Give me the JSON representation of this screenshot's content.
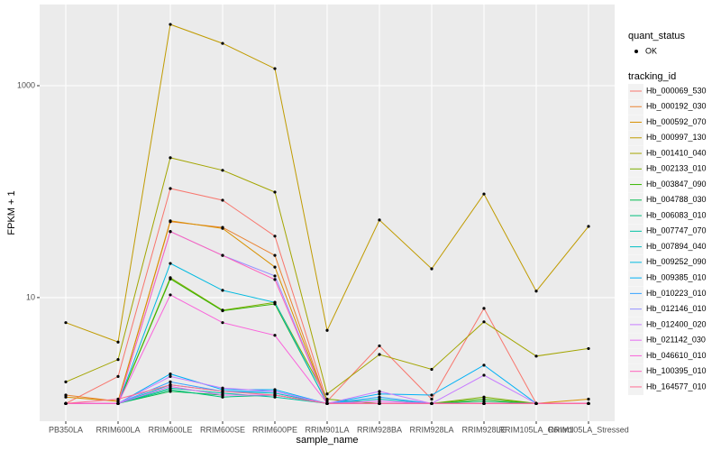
{
  "chart_data": {
    "type": "line",
    "log_y": true,
    "grid": true,
    "x_label": "sample_name",
    "y_label": "FPKM + 1",
    "legend_point_title": "quant_status",
    "legend_point_label": "OK",
    "legend_title": "tracking_id",
    "categories": [
      "PB350LA",
      "RRIM600LA",
      "RRIM600LE",
      "RRIM600SE",
      "RRIM600PE",
      "RRIM901LA",
      "RRIM928BA",
      "RRIM928LA",
      "RRIM928LE",
      "RRIM105LA_Control",
      "RRIM105LA_Stressed"
    ],
    "ylim": [
      0.68,
      5840
    ],
    "yticks": [
      10,
      1000
    ],
    "series": [
      {
        "name": "Hb_000069_530",
        "color": "#F8766D",
        "values": [
          1,
          1.8,
          107,
          83,
          38,
          1.05,
          3.5,
          1.1,
          7.9,
          1,
          1
        ]
      },
      {
        "name": "Hb_000192_030",
        "color": "#EA8331",
        "values": [
          1.2,
          1.05,
          52,
          46,
          25,
          1,
          1,
          1,
          1,
          1,
          1
        ]
      },
      {
        "name": "Hb_000592_070",
        "color": "#D89000",
        "values": [
          1.15,
          1.05,
          53,
          45,
          19.4,
          1,
          1,
          1,
          1,
          1,
          1.1
        ]
      },
      {
        "name": "Hb_000997_130",
        "color": "#C09B00",
        "values": [
          5.8,
          3.8,
          3790,
          2510,
          1450,
          4.9,
          54,
          18.7,
          95,
          11.5,
          47
        ]
      },
      {
        "name": "Hb_001410_040",
        "color": "#A3A500",
        "values": [
          1.6,
          2.6,
          209,
          159,
          99,
          1.23,
          2.9,
          2.1,
          5.9,
          2.8,
          3.3
        ]
      },
      {
        "name": "Hb_002133_010",
        "color": "#7CAE00",
        "values": [
          1,
          1,
          15.4,
          7.6,
          9,
          1.1,
          1,
          1,
          1.15,
          1,
          1
        ]
      },
      {
        "name": "Hb_003847_090",
        "color": "#39B600",
        "values": [
          1,
          1,
          15,
          7.5,
          8.7,
          1,
          1,
          1,
          1.1,
          1,
          1
        ]
      },
      {
        "name": "Hb_004788_030",
        "color": "#00BB4E",
        "values": [
          1,
          1,
          1.3,
          1.2,
          1.2,
          1,
          1,
          1,
          1.05,
          1,
          1
        ]
      },
      {
        "name": "Hb_006083_010",
        "color": "#00BF7D",
        "values": [
          1,
          1,
          1.35,
          1.15,
          1.2,
          1,
          1,
          1,
          1,
          1,
          1
        ]
      },
      {
        "name": "Hb_007747_070",
        "color": "#00C1A3",
        "values": [
          1,
          1,
          1.4,
          1.25,
          1.15,
          1,
          1,
          1,
          1,
          1,
          1
        ]
      },
      {
        "name": "Hb_007894_040",
        "color": "#00BFC4",
        "values": [
          1,
          1,
          1.5,
          1.3,
          1.25,
          1,
          1.1,
          1,
          1,
          1,
          1
        ]
      },
      {
        "name": "Hb_009252_090",
        "color": "#00BAE0",
        "values": [
          1,
          1,
          21,
          11.7,
          9,
          1,
          1,
          1,
          1,
          1,
          1
        ]
      },
      {
        "name": "Hb_009385_010",
        "color": "#00B0F6",
        "values": [
          1,
          1,
          1.9,
          1.35,
          1.35,
          1,
          1.23,
          1.2,
          2.3,
          1,
          1
        ]
      },
      {
        "name": "Hb_010223_010",
        "color": "#35A2FF",
        "values": [
          1,
          1,
          1.6,
          1.3,
          1.3,
          1,
          1.15,
          1,
          1,
          1,
          1
        ]
      },
      {
        "name": "Hb_012146_010",
        "color": "#9590FF",
        "values": [
          1,
          1,
          42,
          25,
          16,
          1,
          1,
          1,
          1,
          1,
          1
        ]
      },
      {
        "name": "Hb_012400_020",
        "color": "#C77CFF",
        "values": [
          1,
          1,
          1.8,
          1.4,
          1.3,
          1,
          1.3,
          1,
          1.85,
          1,
          1
        ]
      },
      {
        "name": "Hb_021142_030",
        "color": "#E76BF3",
        "values": [
          1,
          1,
          1.45,
          1.2,
          1.2,
          1,
          1.05,
          1,
          1,
          1,
          1
        ]
      },
      {
        "name": "Hb_046610_010",
        "color": "#FA62DB",
        "values": [
          1,
          1,
          10.6,
          5.8,
          4.4,
          1,
          1,
          1,
          1,
          1,
          1
        ]
      },
      {
        "name": "Hb_100395_010",
        "color": "#FF62BC",
        "values": [
          1,
          1,
          42,
          25,
          14.8,
          1,
          1,
          1,
          1,
          1,
          1
        ]
      },
      {
        "name": "Hb_164577_010",
        "color": "#FF6C91",
        "values": [
          1,
          1.1,
          1.5,
          1.3,
          1.2,
          1,
          1,
          1,
          1,
          1,
          1
        ]
      }
    ]
  }
}
